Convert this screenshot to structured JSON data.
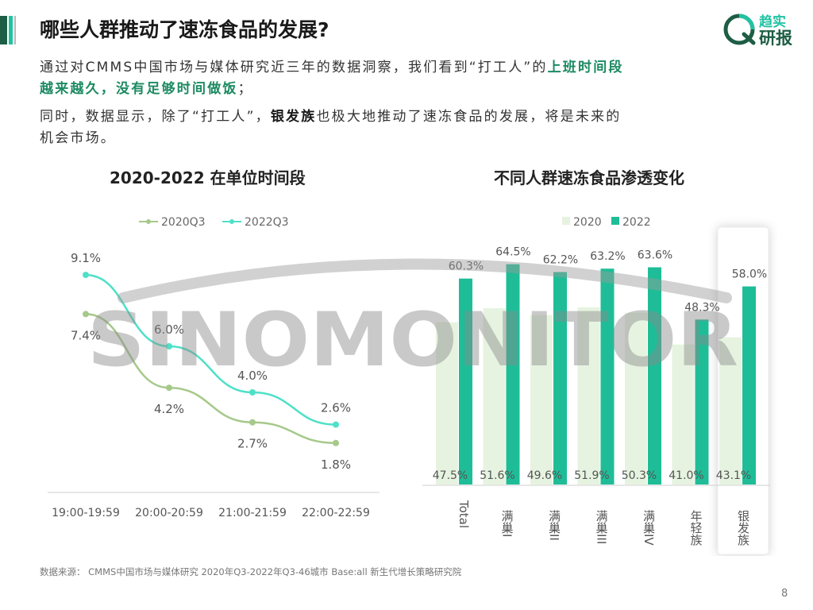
{
  "page": {
    "title": "哪些人群推动了速冻食品的发展?",
    "logo_line1": "趋实",
    "logo_line2": "研报",
    "para1_line1_prefix": "通过对CMMS中国市场与媒体研究近三年的数据洞察，我们看到“打工人”的",
    "para1_line1_bold": "上班时间段",
    "para1_line2_bold": "越来越久，没有足够时间做饭",
    "para1_line2_suffix": "；",
    "para2_line1_prefix": "同时，数据显示，除了“打工人”，",
    "para2_line1_bold": "银发族",
    "para2_line1_suffix": "也极大地推动了速冻食品的发展，将是未来的",
    "para2_line2": "机会市场。",
    "source": "数据来源： CMMS中国市场与媒体研究 2020年Q3-2022年Q3-46城市 Base:all  新生代增长策略研究院",
    "page_number": "8",
    "watermark": "SINOMONITOR"
  },
  "colors": {
    "accent_dark": "#1d5e45",
    "accent_teal": "#21c2a2",
    "line_2020": "#a6c98a",
    "line_2022": "#4fe0c8",
    "bar_2020": "#e6f3e0",
    "bar_2022": "#1fbd97",
    "highlight_text": "#1d8a63"
  },
  "chart_data": [
    {
      "type": "line",
      "title": "2020-2022 在单位时间段",
      "categories": [
        "19:00-19:59",
        "20:00-20:59",
        "21:00-21:59",
        "22:00-22:59"
      ],
      "series": [
        {
          "name": "2020Q3",
          "values": [
            7.4,
            4.2,
            2.7,
            1.8
          ],
          "labels": [
            "7.4%",
            "4.2%",
            "2.7%",
            "1.8%"
          ]
        },
        {
          "name": "2022Q3",
          "values": [
            9.1,
            6.0,
            4.0,
            2.6
          ],
          "labels": [
            "9.1%",
            "6.0%",
            "4.0%",
            "2.6%"
          ]
        }
      ],
      "legend": "top",
      "ylim": [
        0,
        10
      ]
    },
    {
      "type": "bar",
      "title": "不同人群速冻食品渗透变化",
      "categories": [
        "Total",
        "满巢I",
        "满巢II",
        "满巢III",
        "满巢IV",
        "年轻族",
        "银发族"
      ],
      "series": [
        {
          "name": "2020",
          "values": [
            47.5,
            51.6,
            49.6,
            51.9,
            50.3,
            41.0,
            43.1
          ],
          "labels": [
            "47.5%",
            "51.6%",
            "49.6%",
            "51.9%",
            "50.3%",
            "41.0%",
            "43.1%"
          ]
        },
        {
          "name": "2022",
          "values": [
            60.3,
            64.5,
            62.2,
            63.2,
            63.6,
            48.3,
            58.0
          ],
          "labels": [
            "60.3%",
            "64.5%",
            "62.2%",
            "63.2%",
            "63.6%",
            "48.3%",
            "58.0%"
          ]
        }
      ],
      "legend": "top",
      "highlight_category": "银发族",
      "ylim": [
        0,
        70
      ]
    }
  ]
}
